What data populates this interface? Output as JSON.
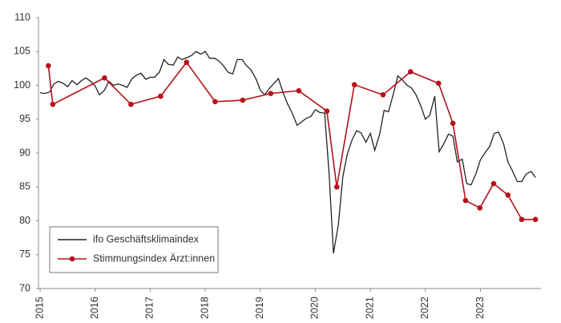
{
  "chart_data": {
    "type": "line",
    "xlim": [
      2014.97,
      2024.1
    ],
    "ylim": [
      70,
      110
    ],
    "xticks": [
      2015,
      2016,
      2017,
      2018,
      2019,
      2020,
      2021,
      2022,
      2023
    ],
    "yticks": [
      70,
      75,
      80,
      85,
      90,
      95,
      100,
      105,
      110
    ],
    "legend": "lower left",
    "series": [
      {
        "name": "ifo Geschäftsklimaindex",
        "color": "#222222",
        "marker": false,
        "x": [
          2015.0,
          2015.08,
          2015.17,
          2015.25,
          2015.33,
          2015.42,
          2015.5,
          2015.58,
          2015.67,
          2015.75,
          2015.83,
          2015.92,
          2016.0,
          2016.08,
          2016.17,
          2016.25,
          2016.33,
          2016.42,
          2016.5,
          2016.58,
          2016.67,
          2016.75,
          2016.83,
          2016.92,
          2017.0,
          2017.08,
          2017.17,
          2017.25,
          2017.33,
          2017.42,
          2017.5,
          2017.58,
          2017.67,
          2017.75,
          2017.83,
          2017.92,
          2018.0,
          2018.08,
          2018.17,
          2018.25,
          2018.33,
          2018.42,
          2018.5,
          2018.58,
          2018.67,
          2018.75,
          2018.83,
          2018.92,
          2019.0,
          2019.08,
          2019.17,
          2019.25,
          2019.33,
          2019.42,
          2019.5,
          2019.58,
          2019.67,
          2019.75,
          2019.83,
          2019.92,
          2020.0,
          2020.08,
          2020.17,
          2020.25,
          2020.33,
          2020.42,
          2020.5,
          2020.58,
          2020.67,
          2020.75,
          2020.83,
          2020.92,
          2021.0,
          2021.08,
          2021.17,
          2021.25,
          2021.33,
          2021.42,
          2021.5,
          2021.58,
          2021.67,
          2021.75,
          2021.83,
          2021.92,
          2022.0,
          2022.08,
          2022.17,
          2022.25,
          2022.33,
          2022.42,
          2022.5,
          2022.58,
          2022.67,
          2022.75,
          2022.83,
          2022.92,
          2023.0,
          2023.08,
          2023.17,
          2023.25,
          2023.33,
          2023.42,
          2023.5,
          2023.58,
          2023.67,
          2023.75,
          2023.83,
          2023.92,
          2024.0
        ],
        "values": [
          98.9,
          98.8,
          99.0,
          100.2,
          100.6,
          100.3,
          99.8,
          100.7,
          100.1,
          100.7,
          101.1,
          100.6,
          99.9,
          98.6,
          99.3,
          100.6,
          100.0,
          100.2,
          100.0,
          99.7,
          101.0,
          101.5,
          101.8,
          100.9,
          101.2,
          101.2,
          102.0,
          103.8,
          103.1,
          103.0,
          104.2,
          103.8,
          104.1,
          104.4,
          105.0,
          104.6,
          105.0,
          104.0,
          104.0,
          103.6,
          102.9,
          101.9,
          101.7,
          103.8,
          103.8,
          102.9,
          102.3,
          101.0,
          99.3,
          98.6,
          99.6,
          100.3,
          101.0,
          98.8,
          97.2,
          95.9,
          94.1,
          94.6,
          95.1,
          95.4,
          96.4,
          96.0,
          95.9,
          87.0,
          75.2,
          79.5,
          86.5,
          89.8,
          92.0,
          93.3,
          93.0,
          91.6,
          92.9,
          90.4,
          92.8,
          96.3,
          96.1,
          98.8,
          101.4,
          100.8,
          100.0,
          99.6,
          98.6,
          96.9,
          95.0,
          95.6,
          98.4,
          90.2,
          91.3,
          92.8,
          92.5,
          88.7,
          89.1,
          85.5,
          85.3,
          87.0,
          89.0,
          90.0,
          91.0,
          92.9,
          93.1,
          91.4,
          88.7,
          87.4,
          85.8,
          85.8,
          86.9,
          87.3,
          86.4
        ]
      },
      {
        "name": "Stimmungsindex Ärzt:innen",
        "color": "#b5121b",
        "marker": true,
        "x": [
          2015.15,
          2015.23,
          2016.17,
          2016.65,
          2017.19,
          2017.66,
          2018.18,
          2018.68,
          2019.19,
          2019.7,
          2020.21,
          2020.39,
          2020.71,
          2021.23,
          2021.73,
          2022.24,
          2022.5,
          2022.73,
          2022.99,
          2023.24,
          2023.5,
          2023.75,
          2024.0
        ],
        "values": [
          102.9,
          97.2,
          101.1,
          97.2,
          98.4,
          103.4,
          97.6,
          97.8,
          98.8,
          99.2,
          96.2,
          85.0,
          100.1,
          98.6,
          102.0,
          100.3,
          94.4,
          83.0,
          81.9,
          85.5,
          83.8,
          80.2,
          80.2
        ]
      }
    ]
  }
}
